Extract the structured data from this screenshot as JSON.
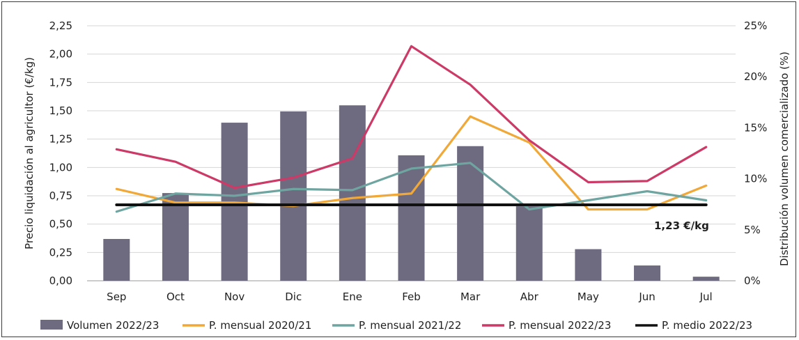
{
  "chart_data": {
    "type": "bar+line",
    "categories": [
      "Sep",
      "Oct",
      "Nov",
      "Dic",
      "Ene",
      "Feb",
      "Mar",
      "Abr",
      "May",
      "Jun",
      "Jul"
    ],
    "ylabel_left": "Precio liquidación al agricultor (€/kg)",
    "ylabel_right": "Distribución volumen comercializado (%)",
    "ylim_left": [
      0,
      2.25
    ],
    "ylim_right": [
      0,
      25
    ],
    "yticks_left": [
      "0,00",
      "0,25",
      "0,50",
      "0,75",
      "1,00",
      "1,25",
      "1,50",
      "1,75",
      "2,00",
      "2,25"
    ],
    "yticks_right": [
      "0%",
      "5%",
      "10%",
      "15%",
      "20%",
      "25%"
    ],
    "grid": true,
    "bars": {
      "name": "Volumen 2022/23",
      "axis": "right",
      "color": "#6e6a80",
      "values": [
        4.1,
        8.6,
        15.5,
        16.6,
        17.2,
        12.3,
        13.2,
        7.3,
        3.1,
        1.5,
        0.4
      ]
    },
    "series": [
      {
        "name": "P. mensual 2020/21",
        "axis": "left",
        "color": "#f0a838",
        "values": [
          0.81,
          0.69,
          0.69,
          0.66,
          0.73,
          0.77,
          1.45,
          1.22,
          0.63,
          0.63,
          0.84
        ]
      },
      {
        "name": "P. mensual 2021/22",
        "axis": "left",
        "color": "#6fa5a1",
        "values": [
          0.61,
          0.77,
          0.75,
          0.81,
          0.8,
          0.99,
          1.04,
          0.63,
          0.71,
          0.79,
          0.71
        ]
      },
      {
        "name": "P. mensual 2022/23",
        "axis": "left",
        "color": "#cc3a67",
        "values": [
          1.16,
          1.05,
          0.82,
          0.91,
          1.08,
          2.07,
          1.73,
          1.24,
          0.87,
          0.88,
          1.18
        ]
      },
      {
        "name": "P. medio 2022/23",
        "axis": "left",
        "color": "#111111",
        "values": [
          0.67,
          0.67,
          0.67,
          0.67,
          0.67,
          0.67,
          0.67,
          0.67,
          0.67,
          0.67,
          0.67
        ]
      }
    ],
    "annotations": [
      {
        "text": "1,23 €/kg"
      }
    ],
    "legend_position": "bottom"
  }
}
